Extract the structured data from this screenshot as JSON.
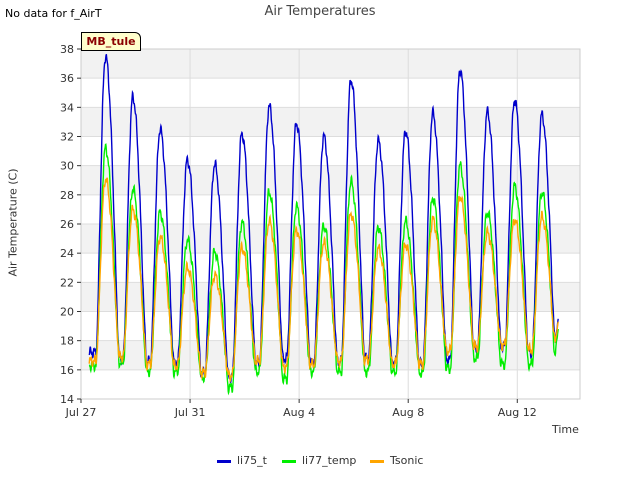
{
  "note": "No data for f_AirT",
  "site_badge": "MB_tule",
  "colors": {
    "li75_t": "#0000cc",
    "li77_temp": "#00ee00",
    "Tsonic": "#ffa500"
  },
  "chart_data": {
    "type": "line",
    "title": "Air Temperatures",
    "xlabel": "Time",
    "ylabel": "Air Temperature (C)",
    "ylim": [
      14,
      38
    ],
    "xlim": [
      0,
      18.3
    ],
    "yticks": [
      14,
      16,
      18,
      20,
      22,
      24,
      26,
      28,
      30,
      32,
      34,
      36,
      38
    ],
    "xticks": [
      {
        "value": 0,
        "label": "Jul 27"
      },
      {
        "value": 4,
        "label": "Jul 31"
      },
      {
        "value": 8,
        "label": "Aug 4"
      },
      {
        "value": 12,
        "label": "Aug 8"
      },
      {
        "value": 16,
        "label": "Aug 12"
      }
    ],
    "grid": true,
    "legend": "bottom",
    "daily": {
      "day_offsets": [
        0.9,
        1.9,
        2.9,
        3.9,
        4.9,
        5.9,
        6.9,
        7.9,
        8.9,
        9.9,
        10.9,
        11.9,
        12.9,
        13.9,
        14.9,
        15.9,
        16.9
      ],
      "series": [
        {
          "name": "li75_t",
          "max": [
            37.5,
            34.7,
            32.5,
            30.4,
            30.1,
            32.2,
            34.1,
            32.9,
            32.0,
            35.9,
            31.7,
            32.4,
            33.6,
            36.6,
            33.7,
            34.5,
            33.5
          ],
          "min": [
            17.2,
            16.8,
            16.6,
            16.5,
            15.8,
            15.5,
            16.5,
            16.8,
            16.5,
            16.6,
            16.8,
            16.5,
            16.4,
            16.7,
            17.5,
            17.6,
            17.2
          ]
        },
        {
          "name": "li77_temp",
          "max": [
            31.2,
            28.4,
            26.8,
            24.9,
            24.1,
            26.1,
            28.2,
            27.2,
            25.9,
            28.9,
            25.8,
            26.2,
            27.8,
            30.0,
            26.8,
            28.6,
            28.2
          ],
          "min": [
            16.3,
            16.5,
            15.9,
            15.9,
            15.5,
            14.8,
            15.9,
            15.4,
            15.9,
            15.9,
            15.9,
            15.9,
            15.8,
            16.1,
            16.8,
            16.4,
            16.4
          ]
        },
        {
          "name": "Tsonic",
          "max": [
            29.1,
            27.0,
            25.1,
            23.0,
            22.5,
            24.4,
            26.2,
            25.6,
            24.7,
            26.7,
            24.3,
            24.6,
            26.3,
            27.9,
            25.4,
            26.3,
            26.5
          ],
          "min": [
            16.6,
            16.9,
            16.4,
            16.3,
            15.8,
            15.6,
            16.6,
            16.2,
            16.4,
            16.6,
            16.7,
            16.4,
            16.4,
            17.3,
            17.6,
            17.7,
            17.4
          ]
        }
      ]
    },
    "series": [
      {
        "name": "li75_t",
        "end_value": 19.5
      },
      {
        "name": "li77_temp",
        "end_value": 18.8
      },
      {
        "name": "Tsonic",
        "end_value": 19.3
      }
    ]
  }
}
